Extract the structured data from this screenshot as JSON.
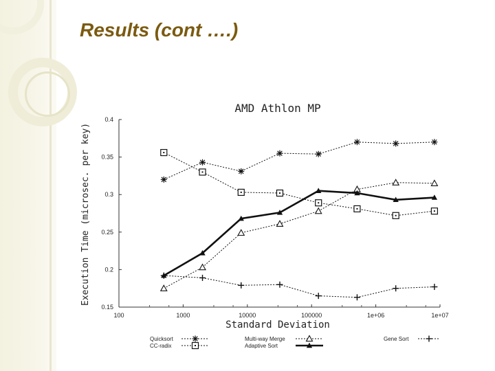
{
  "slide": {
    "title": "Results (cont ….)",
    "accent_color": "#7b5a10"
  },
  "chart_data": {
    "type": "line",
    "title": "AMD Athlon MP",
    "xlabel": "Standard Deviation",
    "ylabel": "Execution Time (microsec. per key)",
    "x_scale": "log",
    "xlim": [
      100,
      10000000
    ],
    "ylim": [
      0.15,
      0.4
    ],
    "x_ticks": [
      "100",
      "1000",
      "10000",
      "100000",
      "1e+06",
      "1e+07"
    ],
    "y_ticks": [
      "0.15",
      "0.2",
      "0.25",
      "0.3",
      "0.35",
      "0.4"
    ],
    "grid": false,
    "legend_position": "bottom",
    "x": [
      500,
      2000,
      8000,
      32000,
      128000,
      512000,
      2048000,
      8192000
    ],
    "series": [
      {
        "name": "Quicksort",
        "marker": "asterisk",
        "line": "dotted",
        "values": [
          0.32,
          0.343,
          0.331,
          0.355,
          0.354,
          0.37,
          0.368,
          0.37
        ]
      },
      {
        "name": "CC-radix",
        "marker": "square",
        "line": "dotted",
        "values": [
          0.356,
          0.33,
          0.303,
          0.302,
          0.289,
          0.281,
          0.272,
          0.278
        ]
      },
      {
        "name": "Multi-way Merge",
        "marker": "triangle",
        "line": "dotted",
        "values": [
          0.175,
          0.203,
          0.249,
          0.261,
          0.278,
          0.307,
          0.316,
          0.315
        ]
      },
      {
        "name": "Adaptive Sort",
        "marker": "filled-triangle",
        "line": "solid-bold",
        "values": [
          0.192,
          0.222,
          0.268,
          0.276,
          0.305,
          0.302,
          0.293,
          0.296
        ]
      },
      {
        "name": "Gene Sort",
        "marker": "plus",
        "line": "dotted",
        "values": [
          0.192,
          0.189,
          0.179,
          0.18,
          0.165,
          0.163,
          0.175,
          0.177
        ]
      }
    ]
  }
}
